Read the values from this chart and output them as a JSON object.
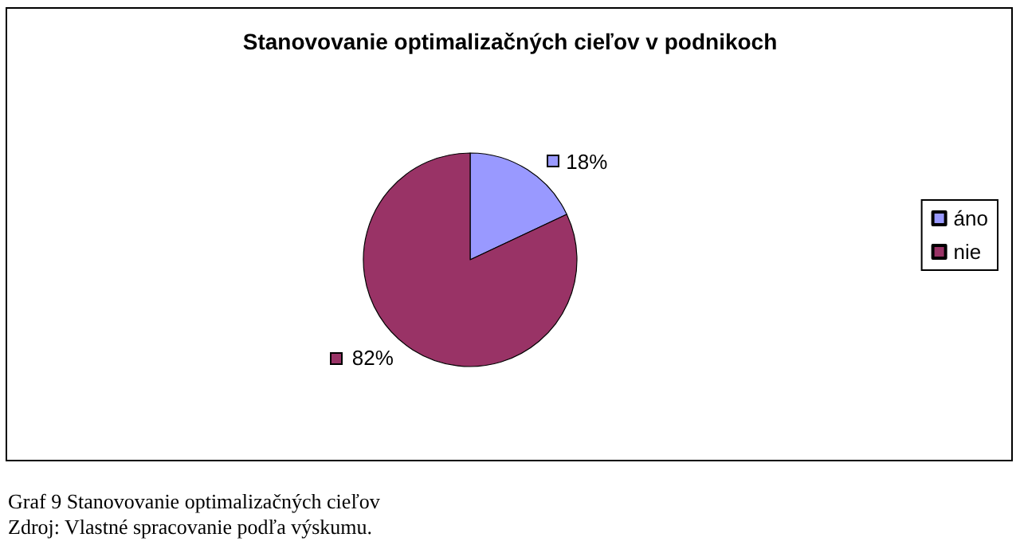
{
  "chart_data": {
    "type": "pie",
    "title": "Stanovovanie optimalizačných cieľov v podnikoch",
    "categories": [
      "áno",
      "nie"
    ],
    "values": [
      18,
      82
    ],
    "colors": [
      "#9999ff",
      "#993366"
    ],
    "value_labels": [
      "18%",
      "82%"
    ],
    "legend": "right",
    "annotations": [
      "Graf 9 Stanovovanie optimalizačných cieľov",
      "Zdroj: Vlastné spracovanie podľa výskumu."
    ]
  }
}
